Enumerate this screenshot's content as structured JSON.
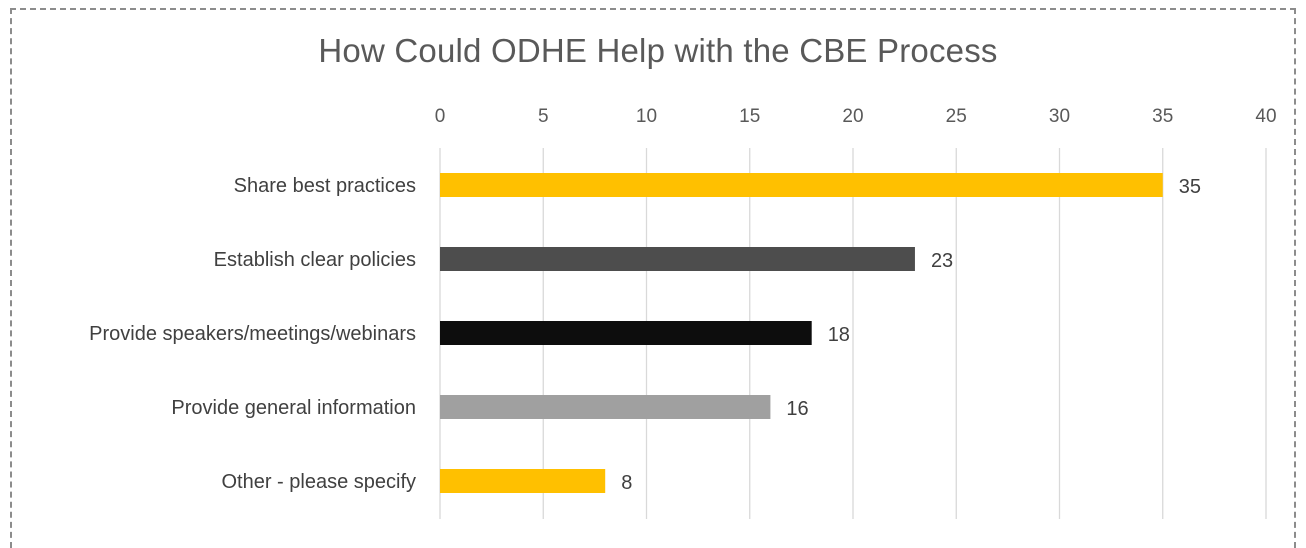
{
  "chart_data": {
    "type": "bar",
    "orientation": "horizontal",
    "title": "How Could ODHE Help with the CBE Process",
    "categories": [
      "Share best practices",
      "Establish clear policies",
      "Provide speakers/meetings/webinars",
      "Provide general information",
      "Other - please specify"
    ],
    "values": [
      35,
      23,
      18,
      16,
      8
    ],
    "bar_colors": [
      "#FFC000",
      "#4D4D4D",
      "#0D0D0D",
      "#A0A0A0",
      "#FFC000"
    ],
    "xlim": [
      0,
      40
    ],
    "xticks": [
      0,
      5,
      10,
      15,
      20,
      25,
      30,
      35,
      40
    ],
    "x_axis_position": "top",
    "grid": true,
    "data_labels": true,
    "legend": "none"
  }
}
